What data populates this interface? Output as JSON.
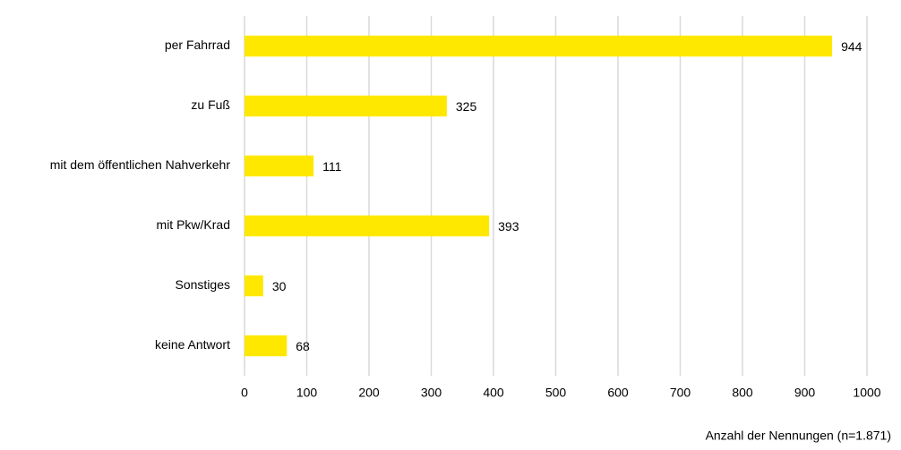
{
  "chart_data": {
    "type": "bar",
    "orientation": "horizontal",
    "categories": [
      "per Fahrrad",
      "zu Fuß",
      "mit dem öffentlichen Nahverkehr",
      "mit Pkw/Krad",
      "Sonstiges",
      "keine Antwort"
    ],
    "values": [
      944,
      325,
      111,
      393,
      30,
      68
    ],
    "color": "#ffe800",
    "xlabel": "Anzahl der Nennungen (n=1.871)",
    "xlim": [
      0,
      1000
    ],
    "xticks": [
      0,
      100,
      200,
      300,
      400,
      500,
      600,
      700,
      800,
      900,
      1000
    ],
    "grid": true,
    "data_labels": true
  }
}
